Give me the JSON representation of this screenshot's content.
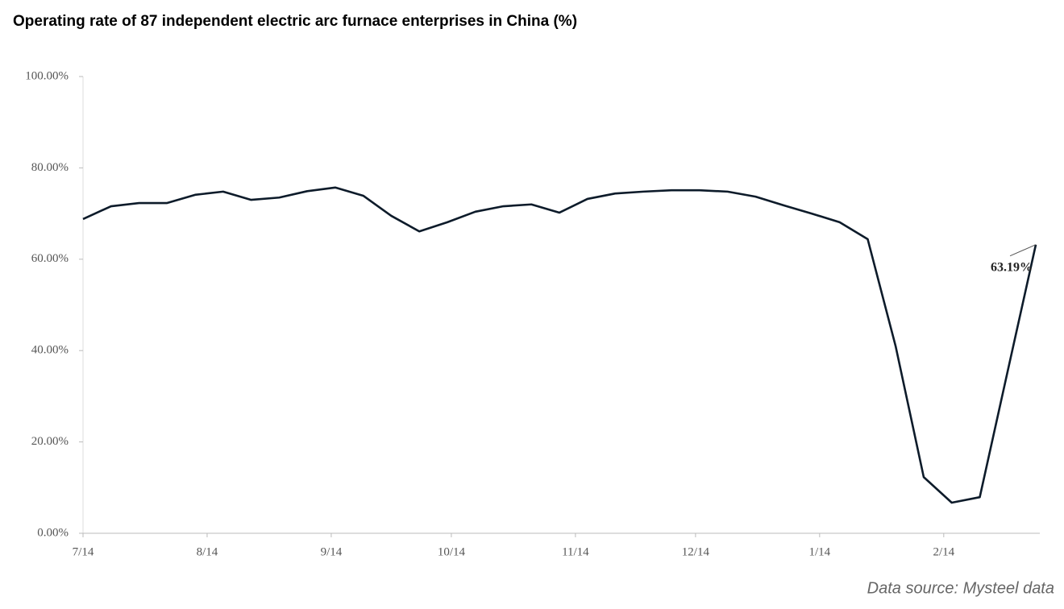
{
  "chart_data": {
    "type": "line",
    "title": "Operating rate of 87 independent electric arc furnace enterprises in China (%)",
    "source": "Data source: Mysteel data",
    "x": [
      0,
      7,
      14,
      21,
      28,
      35,
      42,
      49,
      56,
      63,
      70,
      77,
      84,
      91,
      98,
      105,
      112,
      119,
      126,
      133,
      140,
      147,
      154,
      161,
      168,
      175,
      182,
      189,
      196,
      203,
      210,
      217,
      224,
      231,
      238
    ],
    "series": [
      {
        "name": "Operating rate",
        "color": "#0d1b2a",
        "values": [
          68.8,
          71.6,
          72.3,
          72.3,
          74.1,
          74.8,
          73.0,
          73.5,
          74.9,
          75.7,
          73.9,
          69.5,
          66.1,
          68.1,
          70.4,
          71.6,
          72.0,
          70.2,
          73.2,
          74.4,
          74.8,
          75.1,
          75.1,
          74.8,
          73.7,
          71.8,
          70.0,
          68.1,
          64.4,
          40.9,
          12.3,
          6.7,
          7.9,
          35.6,
          63.19
        ],
        "value_labels": [
          null,
          null,
          null,
          null,
          null,
          null,
          null,
          null,
          null,
          null,
          null,
          null,
          null,
          null,
          null,
          null,
          null,
          null,
          null,
          null,
          null,
          null,
          null,
          null,
          null,
          null,
          null,
          null,
          null,
          null,
          null,
          null,
          null,
          null,
          "63.19%"
        ]
      }
    ],
    "xlim": [
      0,
      239
    ],
    "xticks": [
      {
        "value": 0,
        "label": "7/14"
      },
      {
        "value": 31,
        "label": "8/14"
      },
      {
        "value": 62,
        "label": "9/14"
      },
      {
        "value": 92,
        "label": "10/14"
      },
      {
        "value": 123,
        "label": "11/14"
      },
      {
        "value": 153,
        "label": "12/14"
      },
      {
        "value": 184,
        "label": "1/14"
      },
      {
        "value": 215,
        "label": "2/14"
      }
    ],
    "ylim": [
      0,
      100
    ],
    "yticks": [
      {
        "value": 0,
        "label": "0.00%"
      },
      {
        "value": 20,
        "label": "20.00%"
      },
      {
        "value": 40,
        "label": "40.00%"
      },
      {
        "value": 60,
        "label": "60.00%"
      },
      {
        "value": 80,
        "label": "80.00%"
      },
      {
        "value": 100,
        "label": "100.00%"
      }
    ],
    "grid": false
  }
}
